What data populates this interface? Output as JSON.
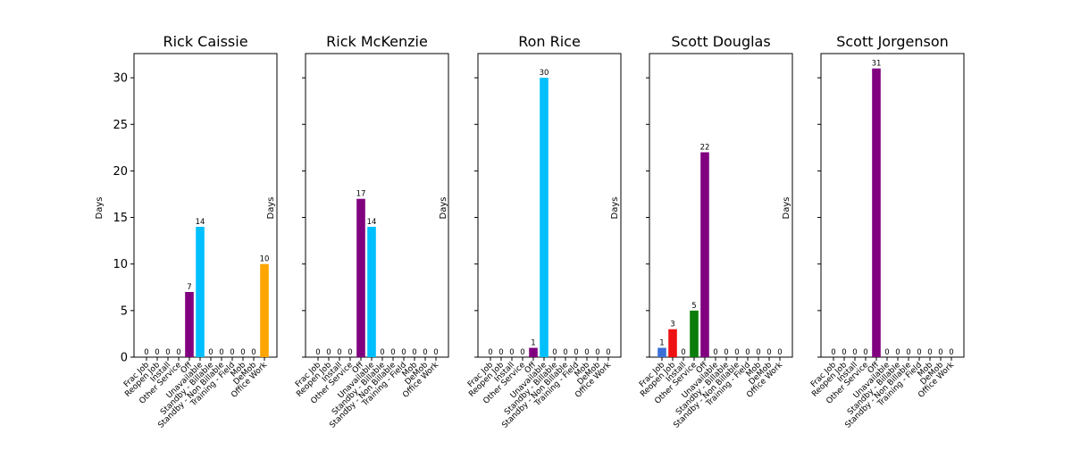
{
  "chart_data": [
    {
      "type": "bar",
      "title": "Rick Caissie",
      "ylabel": "Days",
      "xlabel": "",
      "ylim": [
        0,
        32.6
      ],
      "yticks": [
        0,
        5,
        10,
        15,
        20,
        25,
        30
      ],
      "categories": [
        "Frac Job",
        "Reopen Job",
        "Install",
        "Other Service",
        "Off",
        "Unavailable",
        "Standby - Billable",
        "Standby - Non Billable",
        "Training - Field",
        "Mob",
        "DeMob",
        "Office Work"
      ],
      "values": [
        0,
        0,
        0,
        0,
        7,
        14,
        0,
        0,
        0,
        0,
        0,
        10
      ]
    },
    {
      "type": "bar",
      "title": "Rick McKenzie",
      "ylabel": "Days",
      "xlabel": "",
      "ylim": [
        0,
        32.6
      ],
      "yticks": [
        0,
        5,
        10,
        15,
        20,
        25,
        30
      ],
      "categories": [
        "Frac Job",
        "Reopen Job",
        "Install",
        "Other Service",
        "Off",
        "Unavailable",
        "Standby - Billable",
        "Standby - Non Billable",
        "Training - Field",
        "Mob",
        "DeMob",
        "Office Work"
      ],
      "values": [
        0,
        0,
        0,
        0,
        17,
        14,
        0,
        0,
        0,
        0,
        0,
        0
      ]
    },
    {
      "type": "bar",
      "title": "Ron Rice",
      "ylabel": "Days",
      "xlabel": "",
      "ylim": [
        0,
        32.6
      ],
      "yticks": [
        0,
        5,
        10,
        15,
        20,
        25,
        30
      ],
      "categories": [
        "Frac Job",
        "Reopen Job",
        "Install",
        "Other Service",
        "Off",
        "Unavailable",
        "Standby - Billable",
        "Standby - Non Billable",
        "Training - Field",
        "Mob",
        "DeMob",
        "Office Work"
      ],
      "values": [
        0,
        0,
        0,
        0,
        1,
        30,
        0,
        0,
        0,
        0,
        0,
        0
      ]
    },
    {
      "type": "bar",
      "title": "Scott Douglas",
      "ylabel": "Days",
      "xlabel": "",
      "ylim": [
        0,
        32.6
      ],
      "yticks": [
        0,
        5,
        10,
        15,
        20,
        25,
        30
      ],
      "categories": [
        "Frac Job",
        "Reopen Job",
        "Install",
        "Other Service",
        "Off",
        "Unavailable",
        "Standby - Billable",
        "Standby - Non Billable",
        "Training - Field",
        "Mob",
        "DeMob",
        "Office Work"
      ],
      "values": [
        1,
        3,
        0,
        5,
        22,
        0,
        0,
        0,
        0,
        0,
        0,
        0
      ]
    },
    {
      "type": "bar",
      "title": "Scott Jorgenson",
      "ylabel": "Days",
      "xlabel": "",
      "ylim": [
        0,
        32.6
      ],
      "yticks": [
        0,
        5,
        10,
        15,
        20,
        25,
        30
      ],
      "categories": [
        "Frac Job",
        "Reopen Job",
        "Install",
        "Other Service",
        "Off",
        "Unavailable",
        "Standby - Billable",
        "Standby - Non Billable",
        "Training - Field",
        "Mob",
        "DeMob",
        "Office Work"
      ],
      "values": [
        0,
        0,
        0,
        0,
        31,
        0,
        0,
        0,
        0,
        0,
        0,
        0
      ]
    }
  ],
  "category_colors": [
    "#3a6fd8",
    "#ee1111",
    "#888888",
    "#0a7d0a",
    "#800080",
    "#00bfff",
    "#aaaaaa",
    "#aaaaaa",
    "#aaaaaa",
    "#aaaaaa",
    "#aaaaaa",
    "#ffa500"
  ],
  "grid": false,
  "legend": "none"
}
